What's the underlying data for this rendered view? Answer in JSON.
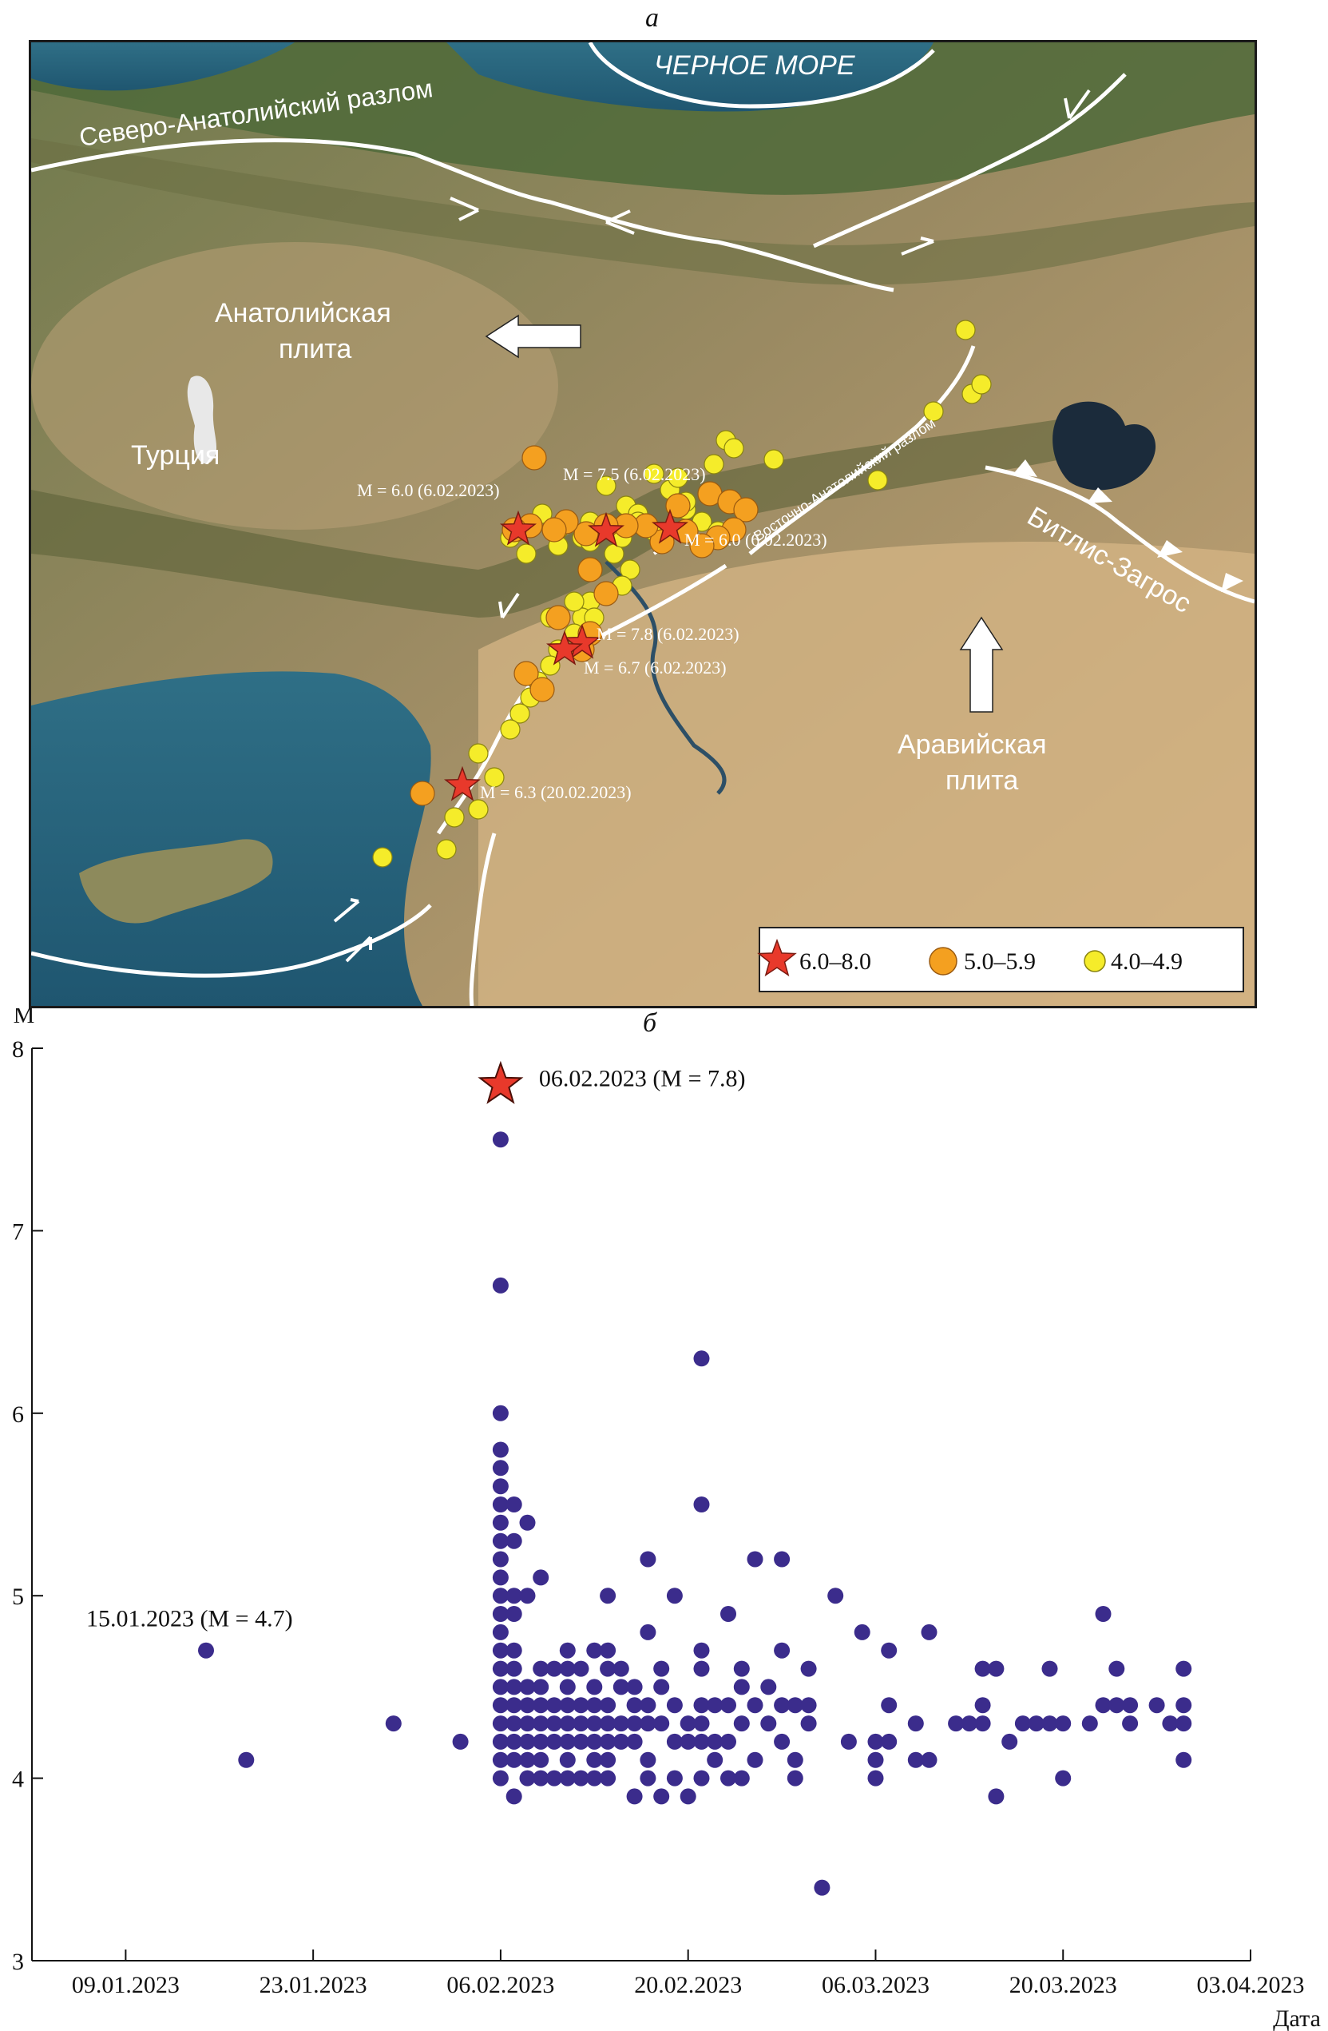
{
  "panel_a_label": "а",
  "panel_b_label": "б",
  "map": {
    "labels": {
      "black_sea": "ЧЕРНОЕ МОРЕ",
      "north_anatolian_fault": "Северо-Анатолийский разлом",
      "east_anatolian_fault": "Восточно-Анатолийский разлом",
      "anatolian_plate_line1": "Анатолийская",
      "anatolian_plate_line2": "плита",
      "turkey": "Турция",
      "arabian_plate_line1": "Аравийская",
      "arabian_plate_line2": "плита",
      "bitlis_zagros": "Битлис-Загрос"
    },
    "event_labels": [
      {
        "id": "m60a",
        "text": "М = 6.0 (6.02.2023)"
      },
      {
        "id": "m75",
        "text": "М = 7.5 (6.02.2023)"
      },
      {
        "id": "m60b",
        "text": "М = 6.0 (6.02.2023)"
      },
      {
        "id": "m78",
        "text": "М = 7.8 (6.02.2023)"
      },
      {
        "id": "m67",
        "text": "М = 6.7 (6.02.2023)"
      },
      {
        "id": "m63",
        "text": "М = 6.3 (20.02.2023)"
      }
    ],
    "legend": [
      {
        "symbol": "star",
        "color": "#e8392b",
        "label": "6.0–8.0"
      },
      {
        "symbol": "circle",
        "color": "#f4a020",
        "label": "5.0–5.9"
      },
      {
        "symbol": "circle",
        "color": "#f5ec2a",
        "label": "4.0–4.9"
      }
    ]
  },
  "chart_data": {
    "type": "scatter",
    "ylabel": "M",
    "xlabel": "Дата",
    "ylim": [
      3,
      8
    ],
    "yticks": [
      3,
      4,
      5,
      6,
      7,
      8
    ],
    "xlim": [
      "2023-01-02",
      "2023-04-03"
    ],
    "xticks": [
      "09.01.2023",
      "23.01.2023",
      "06.02.2023",
      "20.02.2023",
      "06.03.2023",
      "20.03.2023",
      "03.04.2023"
    ],
    "point_color": "#3b2c8c",
    "star_color": "#e8392b",
    "annotations": [
      {
        "text": "06.02.2023 (M = 7.8)",
        "x": "2023-02-06",
        "y": 7.8,
        "marker": "star"
      },
      {
        "text": "15.01.2023 (M = 4.7)",
        "x": "2023-01-15",
        "y": 4.7
      }
    ],
    "points": [
      [
        "2023-01-15",
        4.7
      ],
      [
        "2023-01-18",
        4.1
      ],
      [
        "2023-01-29",
        4.3
      ],
      [
        "2023-02-03",
        4.2
      ],
      [
        "2023-02-06",
        7.5
      ],
      [
        "2023-02-06",
        6.7
      ],
      [
        "2023-02-06",
        6.0
      ],
      [
        "2023-02-06",
        5.8
      ],
      [
        "2023-02-06",
        5.7
      ],
      [
        "2023-02-06",
        5.6
      ],
      [
        "2023-02-06",
        5.5
      ],
      [
        "2023-02-06",
        5.4
      ],
      [
        "2023-02-06",
        5.3
      ],
      [
        "2023-02-06",
        5.2
      ],
      [
        "2023-02-06",
        5.1
      ],
      [
        "2023-02-06",
        5.0
      ],
      [
        "2023-02-06",
        4.9
      ],
      [
        "2023-02-06",
        4.8
      ],
      [
        "2023-02-06",
        4.7
      ],
      [
        "2023-02-06",
        4.6
      ],
      [
        "2023-02-06",
        4.5
      ],
      [
        "2023-02-06",
        4.4
      ],
      [
        "2023-02-06",
        4.3
      ],
      [
        "2023-02-06",
        4.2
      ],
      [
        "2023-02-06",
        4.1
      ],
      [
        "2023-02-06",
        4.0
      ],
      [
        "2023-02-07",
        5.5
      ],
      [
        "2023-02-07",
        5.3
      ],
      [
        "2023-02-07",
        5.0
      ],
      [
        "2023-02-07",
        4.9
      ],
      [
        "2023-02-07",
        4.7
      ],
      [
        "2023-02-07",
        4.6
      ],
      [
        "2023-02-07",
        4.5
      ],
      [
        "2023-02-07",
        4.4
      ],
      [
        "2023-02-07",
        4.3
      ],
      [
        "2023-02-07",
        4.2
      ],
      [
        "2023-02-07",
        4.1
      ],
      [
        "2023-02-07",
        3.9
      ],
      [
        "2023-02-08",
        5.4
      ],
      [
        "2023-02-08",
        5.0
      ],
      [
        "2023-02-08",
        4.5
      ],
      [
        "2023-02-08",
        4.4
      ],
      [
        "2023-02-08",
        4.3
      ],
      [
        "2023-02-08",
        4.2
      ],
      [
        "2023-02-08",
        4.1
      ],
      [
        "2023-02-08",
        4.0
      ],
      [
        "2023-02-09",
        5.1
      ],
      [
        "2023-02-09",
        4.6
      ],
      [
        "2023-02-09",
        4.5
      ],
      [
        "2023-02-09",
        4.4
      ],
      [
        "2023-02-09",
        4.3
      ],
      [
        "2023-02-09",
        4.2
      ],
      [
        "2023-02-09",
        4.1
      ],
      [
        "2023-02-09",
        4.0
      ],
      [
        "2023-02-10",
        4.6
      ],
      [
        "2023-02-10",
        4.4
      ],
      [
        "2023-02-10",
        4.3
      ],
      [
        "2023-02-10",
        4.2
      ],
      [
        "2023-02-10",
        4.0
      ],
      [
        "2023-02-11",
        4.7
      ],
      [
        "2023-02-11",
        4.6
      ],
      [
        "2023-02-11",
        4.5
      ],
      [
        "2023-02-11",
        4.4
      ],
      [
        "2023-02-11",
        4.3
      ],
      [
        "2023-02-11",
        4.2
      ],
      [
        "2023-02-11",
        4.1
      ],
      [
        "2023-02-11",
        4.0
      ],
      [
        "2023-02-12",
        4.6
      ],
      [
        "2023-02-12",
        4.4
      ],
      [
        "2023-02-12",
        4.3
      ],
      [
        "2023-02-12",
        4.2
      ],
      [
        "2023-02-12",
        4.0
      ],
      [
        "2023-02-13",
        4.7
      ],
      [
        "2023-02-13",
        4.5
      ],
      [
        "2023-02-13",
        4.4
      ],
      [
        "2023-02-13",
        4.3
      ],
      [
        "2023-02-13",
        4.2
      ],
      [
        "2023-02-13",
        4.1
      ],
      [
        "2023-02-13",
        4.0
      ],
      [
        "2023-02-14",
        5.0
      ],
      [
        "2023-02-14",
        4.7
      ],
      [
        "2023-02-14",
        4.6
      ],
      [
        "2023-02-14",
        4.4
      ],
      [
        "2023-02-14",
        4.3
      ],
      [
        "2023-02-14",
        4.2
      ],
      [
        "2023-02-14",
        4.1
      ],
      [
        "2023-02-14",
        4.0
      ],
      [
        "2023-02-15",
        4.6
      ],
      [
        "2023-02-15",
        4.5
      ],
      [
        "2023-02-15",
        4.3
      ],
      [
        "2023-02-15",
        4.2
      ],
      [
        "2023-02-16",
        4.5
      ],
      [
        "2023-02-16",
        4.4
      ],
      [
        "2023-02-16",
        4.3
      ],
      [
        "2023-02-16",
        4.2
      ],
      [
        "2023-02-16",
        3.9
      ],
      [
        "2023-02-17",
        5.2
      ],
      [
        "2023-02-17",
        4.8
      ],
      [
        "2023-02-17",
        4.4
      ],
      [
        "2023-02-17",
        4.3
      ],
      [
        "2023-02-17",
        4.1
      ],
      [
        "2023-02-17",
        4.0
      ],
      [
        "2023-02-18",
        4.6
      ],
      [
        "2023-02-18",
        4.5
      ],
      [
        "2023-02-18",
        4.3
      ],
      [
        "2023-02-18",
        3.9
      ],
      [
        "2023-02-19",
        5.0
      ],
      [
        "2023-02-19",
        4.4
      ],
      [
        "2023-02-19",
        4.2
      ],
      [
        "2023-02-19",
        4.0
      ],
      [
        "2023-02-20",
        4.3
      ],
      [
        "2023-02-20",
        4.2
      ],
      [
        "2023-02-20",
        3.9
      ],
      [
        "2023-02-21",
        6.3
      ],
      [
        "2023-02-21",
        5.5
      ],
      [
        "2023-02-21",
        4.7
      ],
      [
        "2023-02-21",
        4.6
      ],
      [
        "2023-02-21",
        4.4
      ],
      [
        "2023-02-21",
        4.3
      ],
      [
        "2023-02-21",
        4.2
      ],
      [
        "2023-02-21",
        4.0
      ],
      [
        "2023-02-22",
        4.4
      ],
      [
        "2023-02-22",
        4.2
      ],
      [
        "2023-02-22",
        4.1
      ],
      [
        "2023-02-23",
        4.9
      ],
      [
        "2023-02-23",
        4.4
      ],
      [
        "2023-02-23",
        4.2
      ],
      [
        "2023-02-23",
        4.0
      ],
      [
        "2023-02-24",
        4.6
      ],
      [
        "2023-02-24",
        4.5
      ],
      [
        "2023-02-24",
        4.3
      ],
      [
        "2023-02-24",
        4.0
      ],
      [
        "2023-02-25",
        5.2
      ],
      [
        "2023-02-25",
        4.4
      ],
      [
        "2023-02-25",
        4.1
      ],
      [
        "2023-02-26",
        4.5
      ],
      [
        "2023-02-26",
        4.3
      ],
      [
        "2023-02-27",
        5.2
      ],
      [
        "2023-02-27",
        4.7
      ],
      [
        "2023-02-27",
        4.4
      ],
      [
        "2023-02-27",
        4.2
      ],
      [
        "2023-02-28",
        4.4
      ],
      [
        "2023-02-28",
        4.1
      ],
      [
        "2023-02-28",
        4.0
      ],
      [
        "2023-03-01",
        4.6
      ],
      [
        "2023-03-01",
        4.4
      ],
      [
        "2023-03-01",
        4.3
      ],
      [
        "2023-03-02",
        3.4
      ],
      [
        "2023-03-03",
        5.0
      ],
      [
        "2023-03-04",
        4.2
      ],
      [
        "2023-03-05",
        4.8
      ],
      [
        "2023-03-06",
        4.2
      ],
      [
        "2023-03-06",
        4.1
      ],
      [
        "2023-03-06",
        4.0
      ],
      [
        "2023-03-07",
        4.7
      ],
      [
        "2023-03-07",
        4.4
      ],
      [
        "2023-03-07",
        4.2
      ],
      [
        "2023-03-09",
        4.3
      ],
      [
        "2023-03-09",
        4.1
      ],
      [
        "2023-03-10",
        4.8
      ],
      [
        "2023-03-10",
        4.1
      ],
      [
        "2023-03-12",
        4.3
      ],
      [
        "2023-03-13",
        4.3
      ],
      [
        "2023-03-14",
        4.6
      ],
      [
        "2023-03-14",
        4.4
      ],
      [
        "2023-03-14",
        4.3
      ],
      [
        "2023-03-15",
        4.6
      ],
      [
        "2023-03-15",
        3.9
      ],
      [
        "2023-03-16",
        4.2
      ],
      [
        "2023-03-17",
        4.3
      ],
      [
        "2023-03-18",
        4.3
      ],
      [
        "2023-03-19",
        4.6
      ],
      [
        "2023-03-19",
        4.3
      ],
      [
        "2023-03-20",
        4.3
      ],
      [
        "2023-03-20",
        4.0
      ],
      [
        "2023-03-22",
        4.3
      ],
      [
        "2023-03-23",
        4.9
      ],
      [
        "2023-03-23",
        4.4
      ],
      [
        "2023-03-24",
        4.6
      ],
      [
        "2023-03-24",
        4.4
      ],
      [
        "2023-03-25",
        4.4
      ],
      [
        "2023-03-25",
        4.3
      ],
      [
        "2023-03-27",
        4.4
      ],
      [
        "2023-03-28",
        4.3
      ],
      [
        "2023-03-29",
        4.6
      ],
      [
        "2023-03-29",
        4.4
      ],
      [
        "2023-03-29",
        4.3
      ],
      [
        "2023-03-29",
        4.1
      ]
    ]
  }
}
